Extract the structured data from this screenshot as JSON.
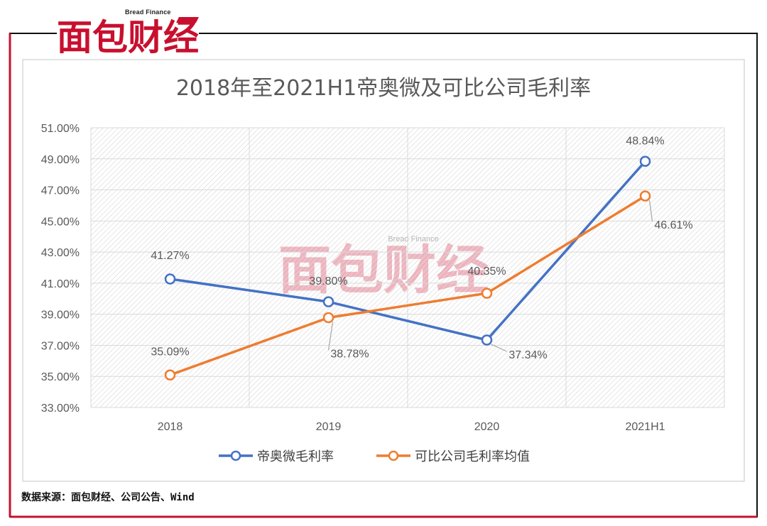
{
  "brand": {
    "logo_text": "面包财经",
    "logo_subtitle": "Bread Finance",
    "watermark_text": "面包财经",
    "watermark_subtitle": "Bread Finance",
    "accent_color": "#c8102e"
  },
  "source_note": "数据来源：面包财经、公司公告、Wind",
  "chart_data": {
    "type": "line",
    "title": "2018年至2021H1帝奥微及可比公司毛利率",
    "categories": [
      "2018",
      "2019",
      "2020",
      "2021H1"
    ],
    "y_ticks": [
      "33.00%",
      "35.00%",
      "37.00%",
      "39.00%",
      "41.00%",
      "43.00%",
      "45.00%",
      "47.00%",
      "49.00%",
      "51.00%"
    ],
    "ylim": [
      33,
      51
    ],
    "grid": true,
    "legend_position": "bottom",
    "series": [
      {
        "name": "帝奥微毛利率",
        "color": "#4472c4",
        "values": [
          41.27,
          39.8,
          37.34,
          48.84
        ],
        "labels": [
          "41.27%",
          "39.80%",
          "37.34%",
          "48.84%"
        ]
      },
      {
        "name": "可比公司毛利率均值",
        "color": "#ed7d31",
        "values": [
          35.09,
          38.78,
          40.35,
          46.61
        ],
        "labels": [
          "35.09%",
          "38.78%",
          "40.35%",
          "46.61%"
        ]
      }
    ]
  }
}
